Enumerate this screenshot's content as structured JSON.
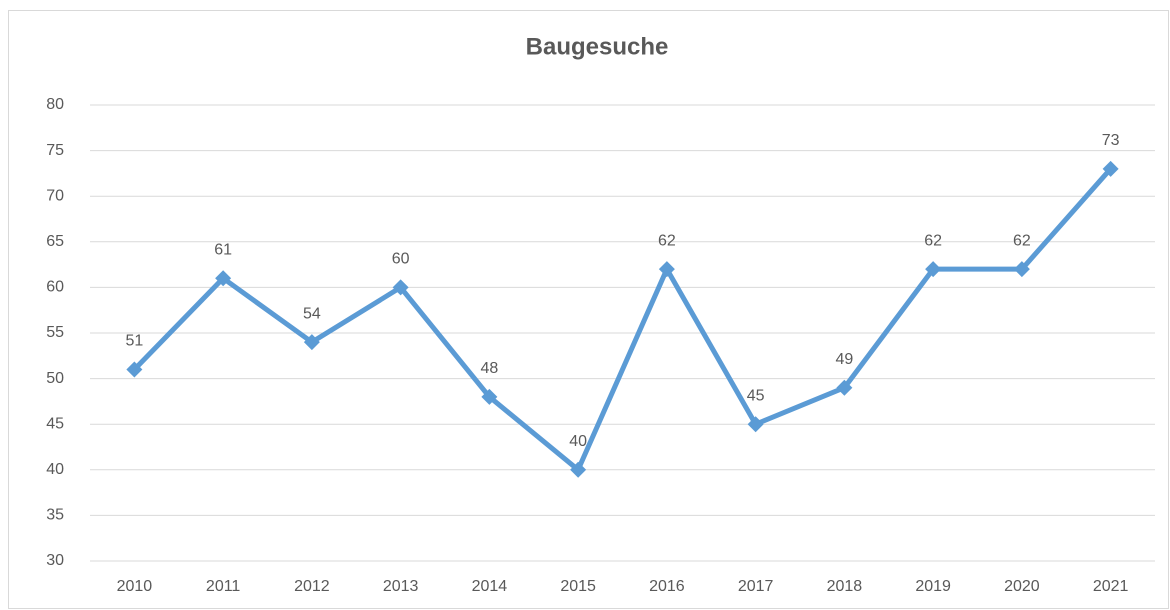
{
  "chart_data": {
    "type": "line",
    "title": "Baugesuche",
    "categories": [
      "2010",
      "2011",
      "2012",
      "2013",
      "2014",
      "2015",
      "2016",
      "2017",
      "2018",
      "2019",
      "2020",
      "2021"
    ],
    "values": [
      51,
      61,
      54,
      60,
      48,
      40,
      62,
      45,
      49,
      62,
      62,
      73
    ],
    "color": "#5b9bd5",
    "ylim": [
      30,
      80
    ],
    "yticks": [
      30,
      35,
      40,
      45,
      50,
      55,
      60,
      65,
      70,
      75,
      80
    ],
    "grid": true,
    "data_labels": true
  }
}
